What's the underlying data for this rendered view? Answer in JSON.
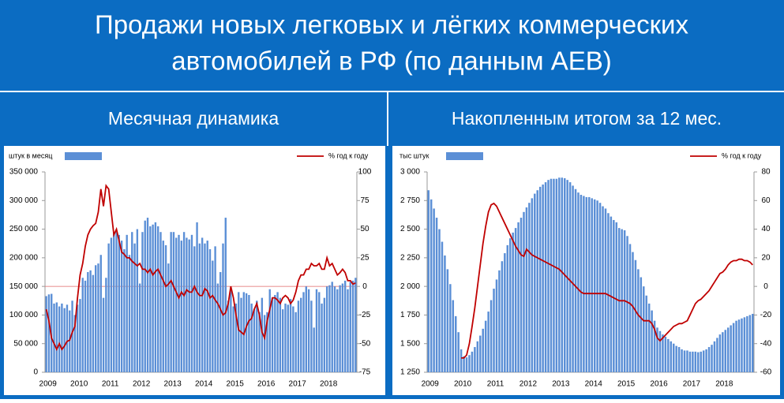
{
  "header": {
    "title_lines": [
      "Продажи новых легковых и лёгких коммерческих",
      "автомобилей в РФ (по данным АЕВ)"
    ]
  },
  "chart_data": [
    {
      "type": "bar",
      "title": "Месячная динамика",
      "categories": [
        "2009",
        null,
        null,
        null,
        null,
        null,
        null,
        null,
        null,
        null,
        null,
        null,
        "2010",
        null,
        null,
        null,
        null,
        null,
        null,
        null,
        null,
        null,
        null,
        null,
        "2011",
        null,
        null,
        null,
        null,
        null,
        null,
        null,
        null,
        null,
        null,
        null,
        "2012",
        null,
        null,
        null,
        null,
        null,
        null,
        null,
        null,
        null,
        null,
        null,
        "2013",
        null,
        null,
        null,
        null,
        null,
        null,
        null,
        null,
        null,
        null,
        null,
        "2014",
        null,
        null,
        null,
        null,
        null,
        null,
        null,
        null,
        null,
        null,
        null,
        "2015",
        null,
        null,
        null,
        null,
        null,
        null,
        null,
        null,
        null,
        null,
        null,
        "2016",
        null,
        null,
        null,
        null,
        null,
        null,
        null,
        null,
        null,
        null,
        null,
        "2017",
        null,
        null,
        null,
        null,
        null,
        null,
        null,
        null,
        null,
        null,
        null,
        "2018",
        null,
        null,
        null,
        null,
        null,
        null,
        null,
        null,
        null,
        null,
        null
      ],
      "series": [
        {
          "name": "штук в месяц",
          "color": "#5b8fd6",
          "values": [
            133000,
            136000,
            137000,
            120000,
            122000,
            115000,
            120000,
            112000,
            118000,
            108000,
            125000,
            100000,
            118000,
            128000,
            165000,
            160000,
            175000,
            178000,
            170000,
            187000,
            190000,
            205000,
            130000,
            165000,
            225000,
            235000,
            245000,
            245000,
            240000,
            230000,
            215000,
            240000,
            205000,
            245000,
            225000,
            250000,
            155000,
            245000,
            265000,
            270000,
            255000,
            258000,
            262000,
            255000,
            245000,
            230000,
            222000,
            190000,
            245000,
            245000,
            235000,
            240000,
            230000,
            245000,
            235000,
            232000,
            240000,
            220000,
            262000,
            225000,
            235000,
            225000,
            230000,
            215000,
            195000,
            220000,
            155000,
            175000,
            225000,
            270000,
            125000,
            145000,
            115000,
            120000,
            140000,
            130000,
            140000,
            138000,
            135000,
            120000,
            110000,
            125000,
            105000,
            130000,
            100000,
            105000,
            145000,
            130000,
            135000,
            140000,
            130000,
            110000,
            120000,
            118000,
            128000,
            115000,
            105000,
            125000,
            130000,
            140000,
            150000,
            145000,
            125000,
            78000,
            145000,
            140000,
            120000,
            130000,
            150000,
            152000,
            158000,
            150000,
            145000,
            152000,
            155000,
            160000,
            145000,
            158000,
            160000,
            165000
          ]
        },
        {
          "name": "% год к году",
          "color": "#c00000",
          "axis": "y2",
          "values": [
            -20,
            -30,
            -45,
            -50,
            -55,
            -50,
            -55,
            -52,
            -48,
            -47,
            -40,
            -35,
            -10,
            10,
            20,
            35,
            45,
            50,
            53,
            55,
            65,
            85,
            70,
            88,
            85,
            65,
            45,
            50,
            40,
            30,
            28,
            25,
            25,
            22,
            20,
            18,
            20,
            15,
            15,
            12,
            15,
            10,
            13,
            15,
            10,
            5,
            0,
            2,
            5,
            0,
            -5,
            -10,
            -5,
            -8,
            -3,
            -5,
            -5,
            0,
            -5,
            -8,
            -8,
            -2,
            -4,
            -10,
            -8,
            -12,
            -15,
            -20,
            -25,
            -23,
            -15,
            0,
            -10,
            -25,
            -38,
            -40,
            -42,
            -35,
            -30,
            -28,
            -20,
            -15,
            -25,
            -40,
            -45,
            -30,
            -20,
            -10,
            -10,
            -12,
            -15,
            -10,
            -8,
            -10,
            -15,
            -12,
            -5,
            5,
            10,
            10,
            15,
            15,
            20,
            18,
            18,
            20,
            15,
            15,
            25,
            18,
            20,
            15,
            10,
            12,
            15,
            12,
            5,
            5,
            2,
            3
          ]
        }
      ],
      "ylim": [
        0,
        350000
      ],
      "yticks": [
        {
          "value": 0,
          "label": "0"
        },
        {
          "value": 50000,
          "label": "50 000"
        },
        {
          "value": 100000,
          "label": "100 000"
        },
        {
          "value": 150000,
          "label": "150 000"
        },
        {
          "value": 200000,
          "label": "200 000"
        },
        {
          "value": 250000,
          "label": "250 000"
        },
        {
          "value": 300000,
          "label": "300 000"
        },
        {
          "value": 350000,
          "label": "350 000"
        }
      ],
      "y2lim": [
        -75,
        100
      ],
      "y2ticks": [
        -75,
        -50,
        -25,
        0,
        25,
        50,
        75,
        100
      ],
      "zero_line": true
    },
    {
      "type": "bar",
      "title": "Накопленным итогом за 12 мес.",
      "categories": [
        "2009",
        null,
        null,
        null,
        null,
        null,
        null,
        null,
        null,
        null,
        null,
        null,
        "2010",
        null,
        null,
        null,
        null,
        null,
        null,
        null,
        null,
        null,
        null,
        null,
        "2011",
        null,
        null,
        null,
        null,
        null,
        null,
        null,
        null,
        null,
        null,
        null,
        "2012",
        null,
        null,
        null,
        null,
        null,
        null,
        null,
        null,
        null,
        null,
        null,
        "2013",
        null,
        null,
        null,
        null,
        null,
        null,
        null,
        null,
        null,
        null,
        null,
        "2014",
        null,
        null,
        null,
        null,
        null,
        null,
        null,
        null,
        null,
        null,
        null,
        "2015",
        null,
        null,
        null,
        null,
        null,
        null,
        null,
        null,
        null,
        null,
        null,
        "2016",
        null,
        null,
        null,
        null,
        null,
        null,
        null,
        null,
        null,
        null,
        null,
        "2017",
        null,
        null,
        null,
        null,
        null,
        null,
        null,
        null,
        null,
        null,
        null,
        "2018",
        null,
        null,
        null,
        null,
        null,
        null,
        null,
        null,
        null,
        null,
        null
      ],
      "series": [
        {
          "name": "тыс штук",
          "color": "#5b8fd6",
          "values": [
            2840,
            2760,
            2680,
            2600,
            2500,
            2390,
            2270,
            2150,
            2020,
            1880,
            1740,
            1600,
            1450,
            1390,
            1380,
            1400,
            1430,
            1470,
            1520,
            1570,
            1630,
            1700,
            1780,
            1880,
            1980,
            2060,
            2140,
            2220,
            2290,
            2360,
            2420,
            2470,
            2510,
            2560,
            2600,
            2650,
            2690,
            2730,
            2770,
            2810,
            2840,
            2870,
            2890,
            2910,
            2930,
            2940,
            2940,
            2940,
            2950,
            2950,
            2945,
            2930,
            2910,
            2880,
            2850,
            2820,
            2800,
            2790,
            2780,
            2780,
            2770,
            2760,
            2750,
            2730,
            2700,
            2680,
            2640,
            2610,
            2580,
            2560,
            2510,
            2500,
            2490,
            2440,
            2370,
            2300,
            2230,
            2150,
            2080,
            2000,
            1920,
            1850,
            1790,
            1700,
            1640,
            1610,
            1580,
            1560,
            1540,
            1520,
            1500,
            1480,
            1470,
            1450,
            1440,
            1440,
            1430,
            1430,
            1430,
            1425,
            1430,
            1440,
            1450,
            1470,
            1490,
            1520,
            1550,
            1580,
            1600,
            1620,
            1640,
            1660,
            1680,
            1700,
            1710,
            1720,
            1730,
            1740,
            1750,
            1760
          ]
        },
        {
          "name": "% год к году",
          "color": "#c00000",
          "axis": "y2",
          "values": [
            null,
            null,
            null,
            null,
            null,
            null,
            null,
            null,
            null,
            null,
            null,
            null,
            -50,
            -50,
            -48,
            -40,
            -28,
            -15,
            0,
            15,
            30,
            42,
            52,
            57,
            58,
            56,
            52,
            48,
            44,
            40,
            36,
            32,
            28,
            25,
            22,
            21,
            26,
            24,
            22,
            21,
            20,
            19,
            18,
            17,
            16,
            15,
            14,
            13,
            12,
            10,
            8,
            6,
            4,
            2,
            0,
            -2,
            -4,
            -5,
            -5,
            -5,
            -5,
            -5,
            -5,
            -5,
            -5,
            -5,
            -6,
            -7,
            -8,
            -9,
            -10,
            -10,
            -10,
            -11,
            -12,
            -14,
            -17,
            -20,
            -22,
            -24,
            -24,
            -24,
            -26,
            -30,
            -36,
            -38,
            -36,
            -34,
            -32,
            -30,
            -28,
            -27,
            -26,
            -26,
            -25,
            -24,
            -20,
            -16,
            -12,
            -10,
            -9,
            -7,
            -5,
            -3,
            0,
            3,
            6,
            9,
            10,
            12,
            15,
            17,
            18,
            18,
            19,
            19,
            18,
            18,
            17,
            15
          ]
        }
      ],
      "ylim": [
        1250,
        3000
      ],
      "yticks": [
        {
          "value": 1250,
          "label": "1 250"
        },
        {
          "value": 1500,
          "label": "1 500"
        },
        {
          "value": 1750,
          "label": "1 750"
        },
        {
          "value": 2000,
          "label": "2 000"
        },
        {
          "value": 2250,
          "label": "2 250"
        },
        {
          "value": 2500,
          "label": "2 500"
        },
        {
          "value": 2750,
          "label": "2 750"
        },
        {
          "value": 3000,
          "label": "3 000"
        }
      ],
      "y2lim": [
        -60,
        80
      ],
      "y2ticks": [
        -60,
        -40,
        -20,
        0,
        20,
        40,
        60,
        80
      ],
      "zero_line": false
    }
  ]
}
